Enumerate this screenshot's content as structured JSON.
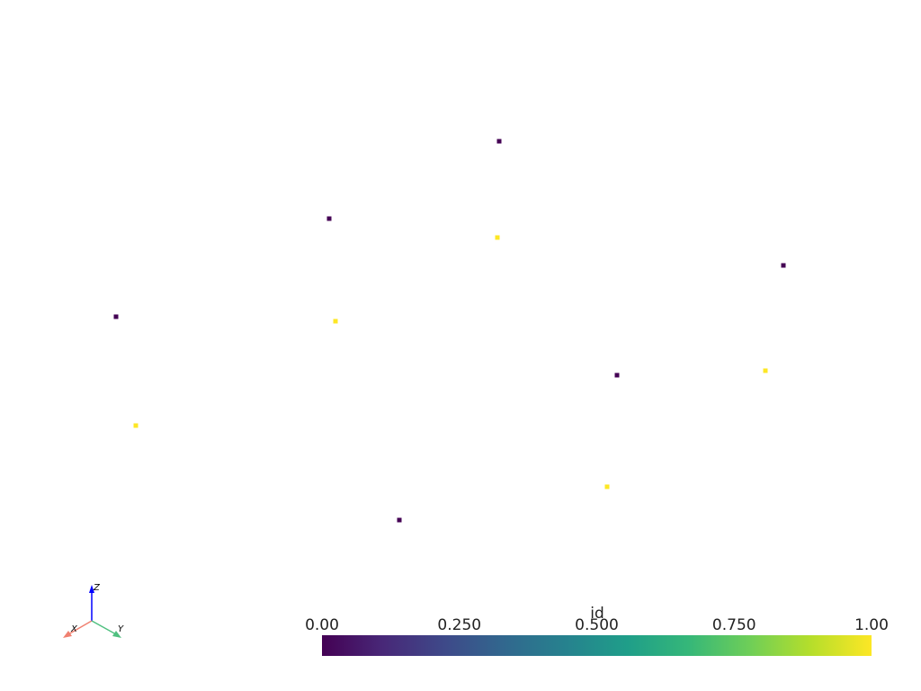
{
  "chart_data": {
    "type": "scatter3d",
    "points": [
      0,
      0,
      0,
      0,
      0,
      0,
      1,
      1,
      1,
      1,
      1
    ],
    "colorbar": {
      "title": "id",
      "colormap": "viridis",
      "clim": [
        0,
        1
      ],
      "ticks": [
        {
          "value": 0,
          "label": "0.00"
        },
        {
          "value": 0.25,
          "label": "0.250"
        },
        {
          "value": 0.5,
          "label": "0.500"
        },
        {
          "value": 0.75,
          "label": "0.750"
        },
        {
          "value": 1,
          "label": "1.00"
        }
      ]
    },
    "axes_labels": [
      "X",
      "Y",
      "Z"
    ]
  }
}
